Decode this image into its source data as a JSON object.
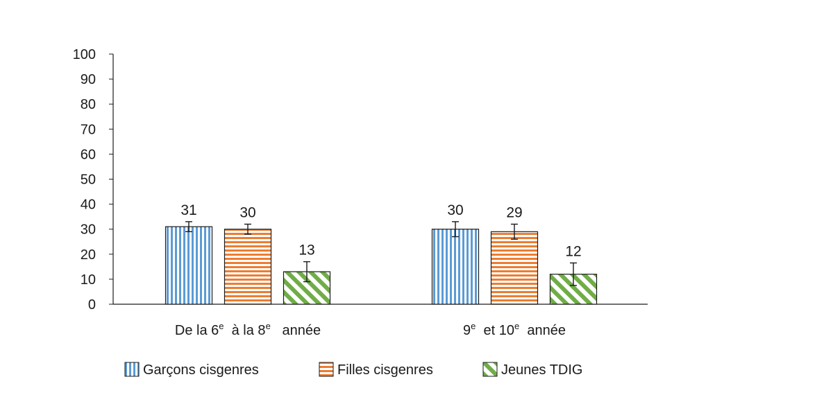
{
  "chart_data": {
    "type": "bar",
    "ylim": [
      0,
      100
    ],
    "yticks": [
      0,
      10,
      20,
      30,
      40,
      50,
      60,
      70,
      80,
      90,
      100
    ],
    "grid": false,
    "legend_position": "bottom",
    "categories": [
      {
        "parts": [
          {
            "text": "De la 6",
            "sup": false
          },
          {
            "text": "e",
            "sup": true
          },
          {
            "text": "  à la 8",
            "sup": false
          },
          {
            "text": "e",
            "sup": true
          },
          {
            "text": "   année",
            "sup": false
          }
        ]
      },
      {
        "parts": [
          {
            "text": "9",
            "sup": false
          },
          {
            "text": "e",
            "sup": true
          },
          {
            "text": "  et 10",
            "sup": false
          },
          {
            "text": "e",
            "sup": true
          },
          {
            "text": "  année",
            "sup": false
          }
        ]
      }
    ],
    "series": [
      {
        "name": "Garçons cisgenres",
        "pattern": "vertical",
        "color": "#5b9bd5",
        "values": [
          31,
          30
        ],
        "err_low": [
          2,
          3
        ],
        "err_high": [
          2,
          3
        ]
      },
      {
        "name": "Filles cisgenres",
        "pattern": "horizontal",
        "color": "#ed7d31",
        "values": [
          30,
          29
        ],
        "err_low": [
          2,
          3
        ],
        "err_high": [
          2,
          3
        ]
      },
      {
        "name": "Jeunes TDIG",
        "pattern": "diagonal",
        "color": "#70ad47",
        "values": [
          13,
          12
        ],
        "err_low": [
          4,
          4.5
        ],
        "err_high": [
          4,
          4.5
        ]
      }
    ]
  }
}
